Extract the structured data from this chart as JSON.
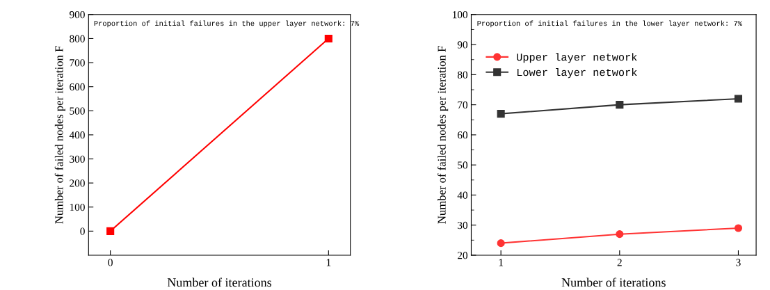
{
  "chart_data": [
    {
      "type": "line",
      "xlabel": "Number of iterations",
      "ylabel": "Number of failed nodes per iteration F",
      "annotations": [
        "Proportion of initial failures in the upper layer network: 7%"
      ],
      "x": [
        0,
        1
      ],
      "xlim": [
        -0.1,
        1.1
      ],
      "xticks": [
        0,
        1
      ],
      "ylim": [
        -100,
        900
      ],
      "yticks": [
        0,
        100,
        200,
        300,
        400,
        500,
        600,
        700,
        800,
        900
      ],
      "series": [
        {
          "color": "#ff0000",
          "values": [
            0,
            800
          ],
          "marker": "square"
        }
      ],
      "grid": false,
      "legend": false
    },
    {
      "type": "line",
      "xlabel": "Number of iterations",
      "ylabel": "Number of failed nodes per iteration F",
      "annotations": [
        "Proportion of initial failures in the lower layer network: 7%"
      ],
      "x": [
        1,
        2,
        3
      ],
      "xlim": [
        0.75,
        3.15
      ],
      "xticks": [
        1,
        2,
        3
      ],
      "ylim": [
        20,
        100
      ],
      "yticks": [
        20,
        30,
        40,
        50,
        60,
        70,
        80,
        90,
        100
      ],
      "series": [
        {
          "name": "Upper layer network",
          "color": "#ff3333",
          "values": [
            24,
            27,
            29
          ],
          "marker": "circle"
        },
        {
          "name": "Lower layer network",
          "color": "#333333",
          "values": [
            67,
            70,
            72
          ],
          "marker": "square"
        }
      ],
      "grid": false,
      "legend": "upper left"
    }
  ]
}
